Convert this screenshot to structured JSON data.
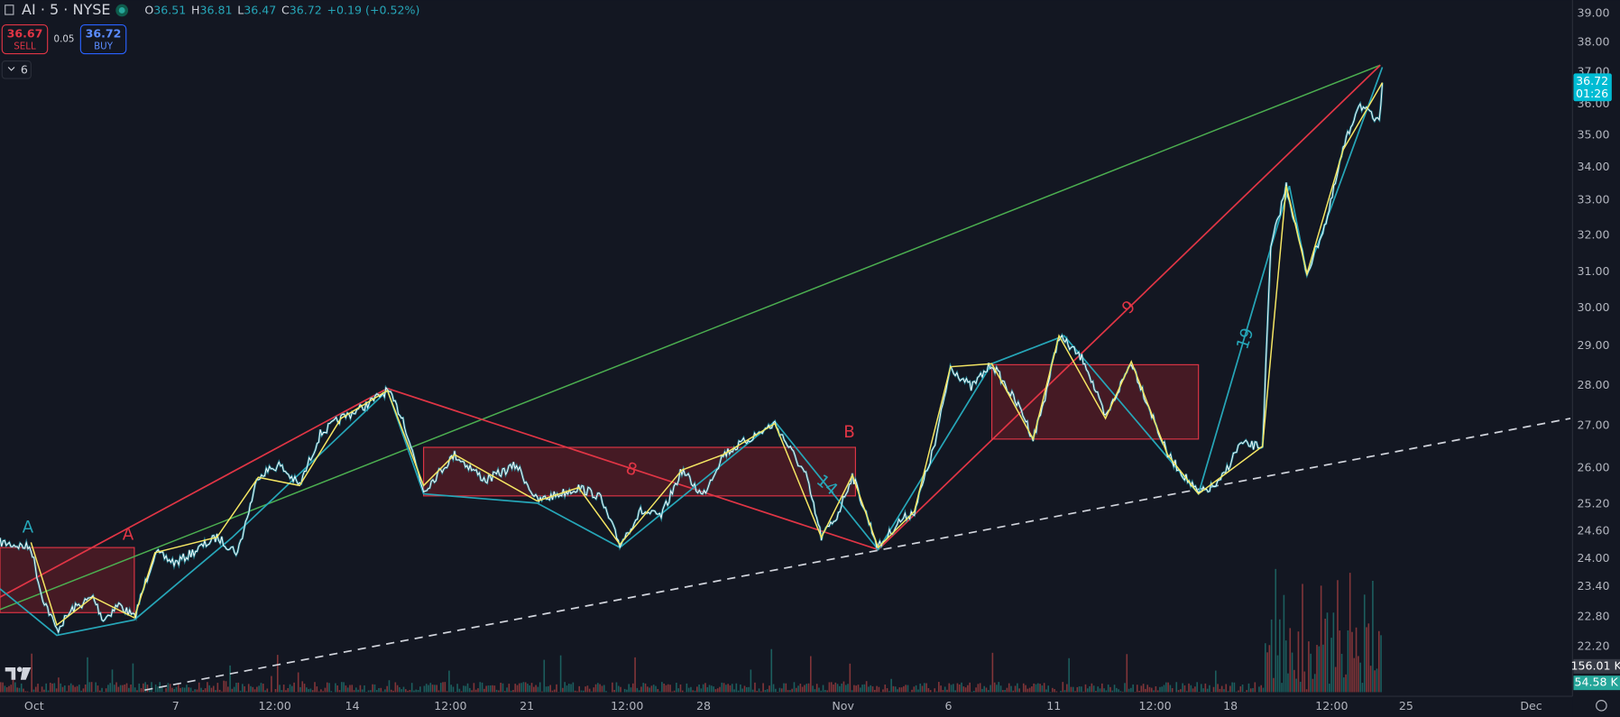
{
  "header": {
    "symbol": "AI · 5 · NYSE",
    "ohlc": [
      {
        "key": "O",
        "value": "36.51"
      },
      {
        "key": "H",
        "value": "36.81"
      },
      {
        "key": "L",
        "value": "36.47"
      },
      {
        "key": "C",
        "value": "36.72"
      }
    ],
    "change": "+0.19 (+0.52%)"
  },
  "trade": {
    "sell_price": "36.67",
    "sell_label": "SELL",
    "spread": "0.05",
    "buy_price": "36.72",
    "buy_label": "BUY"
  },
  "indicator_count": "6",
  "price_axis": {
    "labels": [
      "39.00",
      "38.00",
      "37.00",
      "36.00",
      "35.00",
      "34.00",
      "33.00",
      "32.00",
      "31.00",
      "30.00",
      "29.00",
      "28.00",
      "27.00",
      "26.00",
      "25.20",
      "24.60",
      "24.00",
      "23.40",
      "22.80",
      "22.20"
    ]
  },
  "last_price": {
    "price": "36.72",
    "countdown": "01:26"
  },
  "volume_labels": [
    "156.01 K",
    "54.58 K"
  ],
  "time_axis": {
    "labels": [
      "Oct",
      "7",
      "12:00",
      "14",
      "12:00",
      "21",
      "12:00",
      "28",
      "Nov",
      "6",
      "11",
      "12:00",
      "18",
      "12:00",
      "25",
      "Dec"
    ]
  },
  "annotations": [
    "A",
    "A",
    "B",
    "8",
    "9",
    "14",
    "19"
  ]
}
